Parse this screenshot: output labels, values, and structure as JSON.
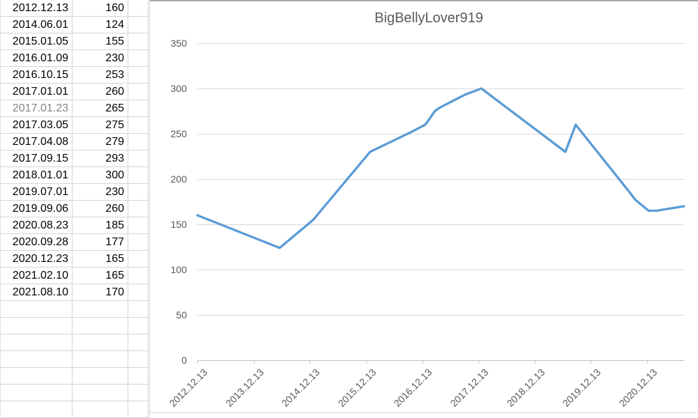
{
  "sheet": {
    "rows": [
      {
        "date": "2012.12.13",
        "value": 160
      },
      {
        "date": "2014.06.01",
        "value": 124
      },
      {
        "date": "2015.01.05",
        "value": 155
      },
      {
        "date": "2016.01.09",
        "value": 230
      },
      {
        "date": "2016.10.15",
        "value": 253
      },
      {
        "date": "2017.01.01",
        "value": 260
      },
      {
        "date": "2017.01.23",
        "value": 265,
        "date_muted": true
      },
      {
        "date": "2017.03.05",
        "value": 275
      },
      {
        "date": "2017.04.08",
        "value": 279
      },
      {
        "date": "2017.09.15",
        "value": 293
      },
      {
        "date": "2018.01.01",
        "value": 300
      },
      {
        "date": "2019.07.01",
        "value": 230
      },
      {
        "date": "2019.09.06",
        "value": 260
      },
      {
        "date": "2020.08.23",
        "value": 185
      },
      {
        "date": "2020.09.28",
        "value": 177
      },
      {
        "date": "2020.12.23",
        "value": 165
      },
      {
        "date": "2021.02.10",
        "value": 165
      },
      {
        "date": "2021.08.10",
        "value": 170
      }
    ],
    "empty_rows": 7
  },
  "chart_data": {
    "type": "line",
    "title": "BigBellyLover919",
    "x": [
      "2012.12.13",
      "2014.06.01",
      "2015.01.05",
      "2016.01.09",
      "2016.10.15",
      "2017.01.01",
      "2017.01.23",
      "2017.03.05",
      "2017.04.08",
      "2017.09.15",
      "2018.01.01",
      "2019.07.01",
      "2019.09.06",
      "2020.08.23",
      "2020.09.28",
      "2020.12.23",
      "2021.02.10",
      "2021.08.10"
    ],
    "values": [
      160,
      124,
      155,
      230,
      253,
      260,
      265,
      275,
      279,
      293,
      300,
      230,
      260,
      185,
      177,
      165,
      165,
      170
    ],
    "x_range": [
      "2012.12.13",
      "2021.08.10"
    ],
    "ylim": [
      0,
      350
    ],
    "yticks": [
      0,
      50,
      100,
      150,
      200,
      250,
      300,
      350
    ],
    "x_tick_labels": [
      "2012.12.13",
      "2013.12.13",
      "2014.12.13",
      "2015.12.13",
      "2016.12.13",
      "2017.12.13",
      "2018.12.13",
      "2019.12.13",
      "2020.12.13"
    ],
    "grid": true,
    "legend": "none",
    "line_color": "#5B9BD5",
    "gridline_color": "#D9D9D9",
    "axis_color": "#BFBFBF",
    "label_color": "#595959",
    "title_color": "#595959"
  }
}
